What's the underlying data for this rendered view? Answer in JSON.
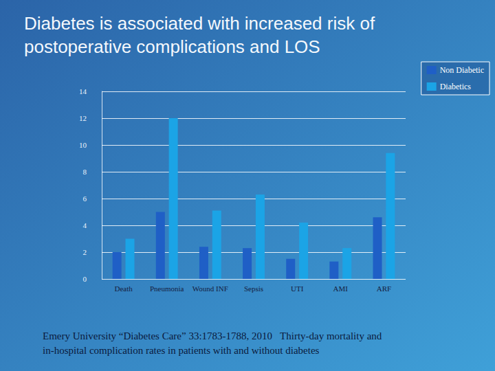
{
  "chart_data": {
    "type": "bar",
    "title": "Diabetes is associated with increased risk of postoperative complications and LOS",
    "categories": [
      "Death",
      "Pneumonia",
      "Wound INF",
      "Sepsis",
      "UTI",
      "AMI",
      "ARF"
    ],
    "series": [
      {
        "name": "Non Diabetic",
        "color": "#1f5fc6",
        "values": [
          2.0,
          5.0,
          2.4,
          2.3,
          1.5,
          1.3,
          4.6
        ]
      },
      {
        "name": "Diabetics",
        "color": "#1ba4e6",
        "values": [
          3.0,
          12.0,
          5.1,
          6.3,
          4.2,
          2.3,
          9.4
        ]
      }
    ],
    "ylim": [
      0,
      14
    ],
    "yticks": [
      0,
      2,
      4,
      6,
      8,
      10,
      12,
      14
    ],
    "grid": true,
    "legend": "top-right",
    "annotations": [
      "Emery University “Diabetes Care” 33:1783-1788, 2010   Thirty-day mortality and in-hospital complication rates in patients with and without diabetes"
    ]
  }
}
